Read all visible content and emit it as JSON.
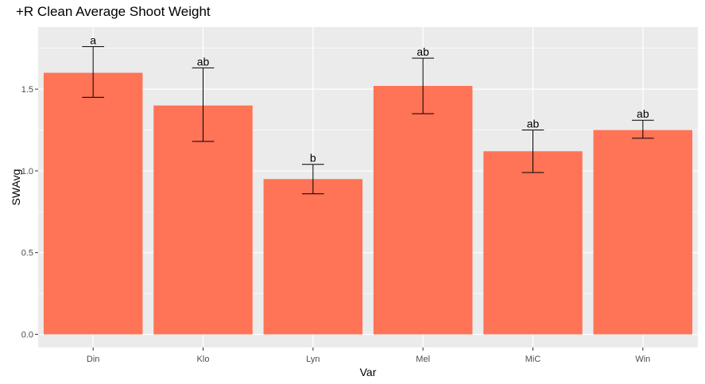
{
  "chart_data": {
    "type": "bar",
    "title": "+R Clean Average Shoot Weight",
    "xlabel": "Var",
    "ylabel": "SWAvg",
    "categories": [
      "Din",
      "Klo",
      "Lyn",
      "Mel",
      "MiC",
      "Win"
    ],
    "values": [
      1.6,
      1.4,
      0.95,
      1.52,
      1.12,
      1.25
    ],
    "error_low": [
      1.45,
      1.18,
      0.86,
      1.35,
      0.99,
      1.2
    ],
    "error_high": [
      1.76,
      1.63,
      1.04,
      1.69,
      1.25,
      1.31
    ],
    "labels": [
      "a",
      "ab",
      "b",
      "ab",
      "ab",
      "ab"
    ],
    "yticks": [
      "0.0",
      "0.5",
      "1.0",
      "1.5"
    ],
    "ytick_values": [
      0,
      0.5,
      1.0,
      1.5
    ],
    "ylim": [
      -0.08,
      1.88
    ],
    "grid": true,
    "bar_color": "#FF7356",
    "panel_color": "#EBEBEB",
    "grid_color": "#FFFFFF"
  }
}
